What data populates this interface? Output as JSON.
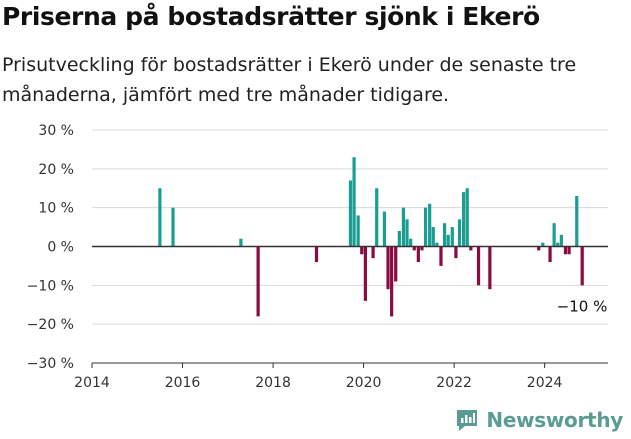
{
  "header": {
    "title": "Priserna på bostadsrätter sjönk i Ekerö",
    "subtitle": "Prisutveckling för bostadsrätter i Ekerö under de senaste tre månaderna, jämfört med tre månader tidigare."
  },
  "logo": {
    "text": "Newsworthy"
  },
  "colors": {
    "positive": "#1a9e92",
    "negative": "#8b0a3f",
    "grid": "#d9d9d9",
    "zero_line": "#333333"
  },
  "chart_data": {
    "type": "bar",
    "title": "",
    "xlabel": "",
    "ylabel": "",
    "xlim": [
      2014,
      2025.4
    ],
    "ylim": [
      -30,
      30
    ],
    "x_ticks": [
      2014,
      2016,
      2018,
      2020,
      2022,
      2024
    ],
    "x_tick_labels": [
      "2014",
      "2016",
      "2018",
      "2020",
      "2022",
      "2024"
    ],
    "y_ticks": [
      -30,
      -20,
      -10,
      0,
      10,
      20,
      30
    ],
    "y_tick_labels": [
      "−30 %",
      "−20 %",
      "−10 %",
      "0 %",
      "10 %",
      "20 %",
      "30 %"
    ],
    "grid": true,
    "annotation": {
      "text": "−10 %",
      "x": 2024.83,
      "y": -10
    },
    "x": [
      2015.5,
      2015.79,
      2017.29,
      2017.67,
      2018.96,
      2019.71,
      2019.79,
      2019.88,
      2019.96,
      2020.04,
      2020.21,
      2020.29,
      2020.46,
      2020.54,
      2020.62,
      2020.71,
      2020.79,
      2020.88,
      2020.96,
      2021.04,
      2021.12,
      2021.21,
      2021.29,
      2021.37,
      2021.46,
      2021.54,
      2021.62,
      2021.71,
      2021.79,
      2021.87,
      2021.96,
      2022.04,
      2022.12,
      2022.21,
      2022.29,
      2022.37,
      2022.54,
      2022.79,
      2023.87,
      2023.96,
      2024.12,
      2024.21,
      2024.29,
      2024.37,
      2024.46,
      2024.54,
      2024.71,
      2024.83
    ],
    "values": [
      15,
      10,
      2,
      -18,
      -4,
      17,
      23,
      8,
      -2,
      -14,
      -3,
      15,
      9,
      -11,
      -18,
      -9,
      4,
      10,
      7,
      2,
      -1,
      -4,
      -1,
      10,
      11,
      5,
      1,
      -5,
      6,
      3,
      5,
      -3,
      7,
      14,
      15,
      -1,
      -10,
      -11,
      -1,
      1,
      -4,
      6,
      1,
      3,
      -2,
      -2,
      13,
      -10
    ]
  }
}
